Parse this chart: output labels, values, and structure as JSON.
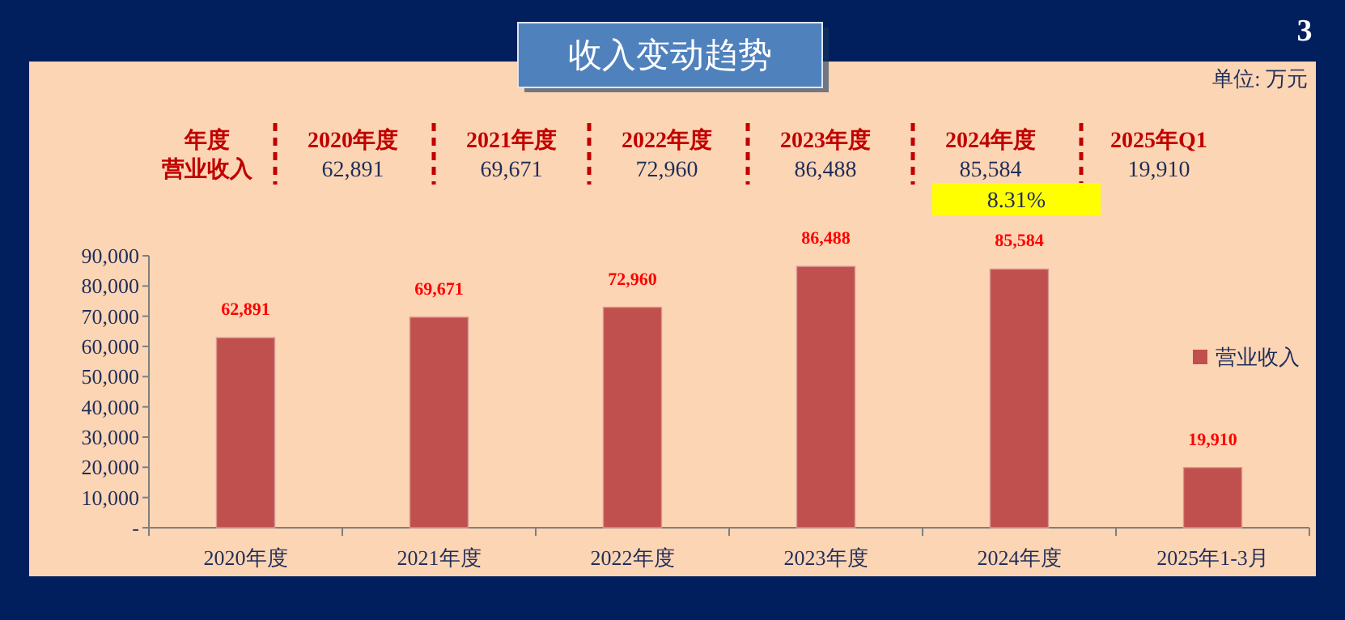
{
  "chart_data": {
    "type": "bar",
    "title": "收入变动趋势",
    "categories": [
      "2020年度",
      "2021年度",
      "2022年度",
      "2023年度",
      "2024年度",
      "2025年1-3月"
    ],
    "series": [
      {
        "name": "营业收入",
        "color": "#c0504d",
        "values": [
          62891,
          69671,
          72960,
          86488,
          85584,
          19910
        ],
        "value_labels": [
          "62,891",
          "69,671",
          "72,960",
          "86,488",
          "85,584",
          "19,910"
        ]
      }
    ],
    "ylim": [
      0,
      90000
    ],
    "yticks": [
      {
        "value": 0,
        "label": "-"
      },
      {
        "value": 10000,
        "label": "10,000"
      },
      {
        "value": 20000,
        "label": "20,000"
      },
      {
        "value": 30000,
        "label": "30,000"
      },
      {
        "value": 40000,
        "label": "40,000"
      },
      {
        "value": 50000,
        "label": "50,000"
      },
      {
        "value": 60000,
        "label": "60,000"
      },
      {
        "value": 70000,
        "label": "70,000"
      },
      {
        "value": 80000,
        "label": "80,000"
      },
      {
        "value": 90000,
        "label": "90,000"
      }
    ],
    "legend": "right",
    "annotations": [
      "3",
      "单位: 万元",
      "年度",
      "营业收入",
      "2020年度",
      "2021年度",
      "2022年度",
      "2023年度",
      "2024年度",
      "2025年Q1",
      "8.31%",
      "62,891",
      "69,671",
      "72,960",
      "86,488",
      "85,584",
      "19,910"
    ]
  }
}
